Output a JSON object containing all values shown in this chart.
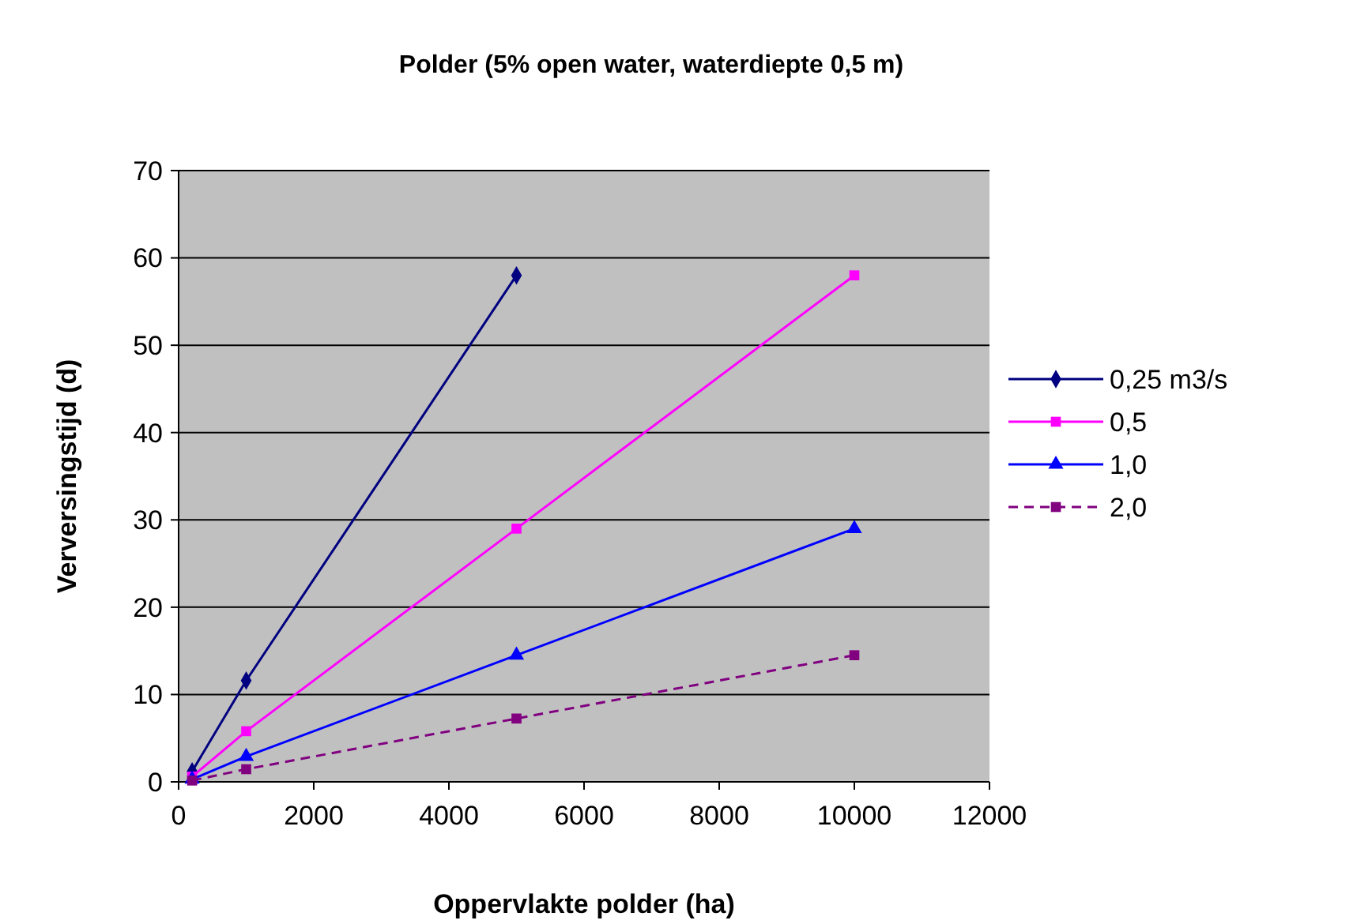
{
  "chart_data": {
    "type": "line",
    "title": "Polder (5% open water, waterdiepte 0,5 m)",
    "xlabel": "Oppervlakte polder (ha)",
    "ylabel": "Verversingstijd (d)",
    "xlim": [
      0,
      12000
    ],
    "xticks": [
      0,
      2000,
      4000,
      6000,
      8000,
      10000,
      12000
    ],
    "ylim": [
      0,
      70
    ],
    "yticks": [
      0,
      10,
      20,
      30,
      40,
      50,
      60,
      70
    ],
    "grid": "y",
    "legend": "right",
    "series": [
      {
        "name": "0,25 m3/s",
        "color": "#000080",
        "x": [
          200,
          1000,
          5000
        ],
        "values": [
          1.2,
          11.6,
          58
        ],
        "marker": "diamond",
        "line_style": "solid"
      },
      {
        "name": "0,5",
        "color": "#ff00ff",
        "x": [
          200,
          1000,
          5000,
          10000
        ],
        "values": [
          0.6,
          5.8,
          29,
          58
        ],
        "marker": "square",
        "line_style": "solid"
      },
      {
        "name": "1,0",
        "color": "#0000ff",
        "x": [
          200,
          1000,
          5000,
          10000
        ],
        "values": [
          0.3,
          2.9,
          14.5,
          29
        ],
        "marker": "triangle",
        "line_style": "solid"
      },
      {
        "name": "2,0",
        "color": "#800080",
        "x": [
          200,
          1000,
          5000,
          10000
        ],
        "values": [
          0.15,
          1.45,
          7.25,
          14.5
        ],
        "marker": "square",
        "line_style": "dashed"
      }
    ]
  }
}
